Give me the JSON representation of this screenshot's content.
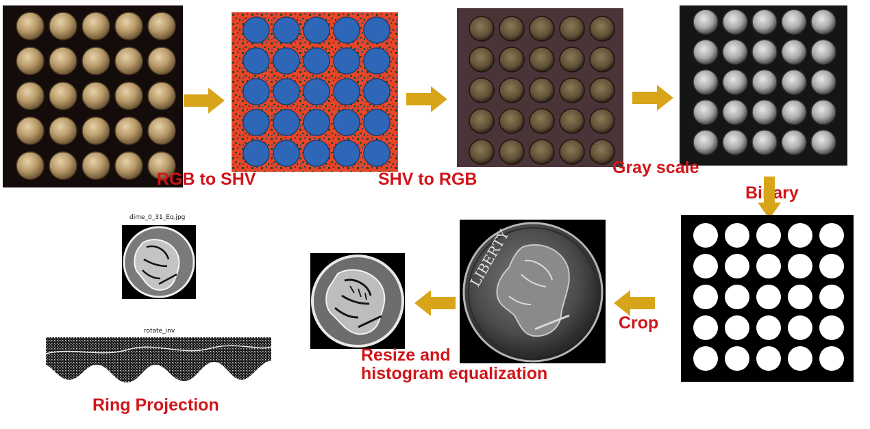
{
  "colors": {
    "label_red": "#d0151a",
    "arrow_gold": "#d8a51a",
    "coin_gold": "#b89a6a",
    "hsv_red": "#e6452a",
    "hsv_blue": "#2f67b8",
    "hsv_green": "#1f4b2c",
    "brown_bg": "#4b3438"
  },
  "icons": [
    "arrow-right-icon",
    "arrow-down-icon",
    "arrow-left-icon"
  ],
  "stages": {
    "rgb_to_shv": "RGB to SHV",
    "shv_to_rgb": "SHV to RGB",
    "gray_scale": "Gray scale",
    "binary": "Binary",
    "crop": "Crop",
    "resize_line1": "Resize and",
    "resize_line2": "histogram equalization",
    "ring_projection": "Ring Projection"
  },
  "captions": {
    "dime_file": "dime_0_31_Eq.jpg",
    "rotate": "rotate_inv"
  }
}
